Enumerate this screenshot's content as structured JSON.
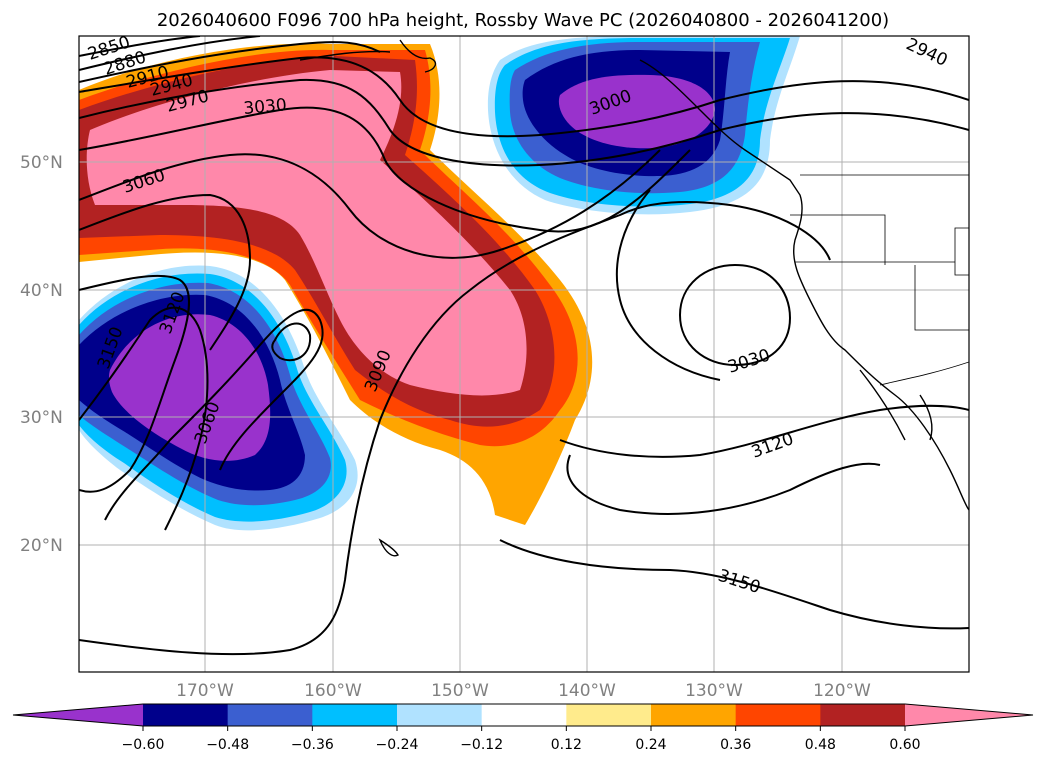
{
  "title": "2026040600 F096 700 hPa height, Rossby Wave PC (2026040800 - 2026041200)",
  "lat_labels": [
    "50°N",
    "40°N",
    "30°N",
    "20°N"
  ],
  "lon_labels": [
    "170°W",
    "160°W",
    "150°W",
    "140°W",
    "130°W",
    "120°W"
  ],
  "colorbar": {
    "colors": [
      "#9932cc",
      "#00008b",
      "#3b5fd0",
      "#00bfff",
      "#b0e2ff",
      "#ffffff",
      "#ffeb8c",
      "#ffa500",
      "#ff4500",
      "#b22222",
      "#ff88aa"
    ],
    "ticks": [
      "−0.60",
      "−0.48",
      "−0.36",
      "−0.24",
      "−0.12",
      "0.12",
      "0.24",
      "0.36",
      "0.48",
      "0.60"
    ]
  },
  "contour_labels": [
    "2850",
    "2880",
    "2910",
    "2940",
    "2970",
    "3030",
    "3060",
    "3000",
    "2940",
    "3150",
    "3120",
    "3060",
    "3090",
    "3030",
    "3120",
    "3150"
  ],
  "colors": {
    "contour": "#000000",
    "grid": "#b0b0b0",
    "coast": "#000000"
  }
}
